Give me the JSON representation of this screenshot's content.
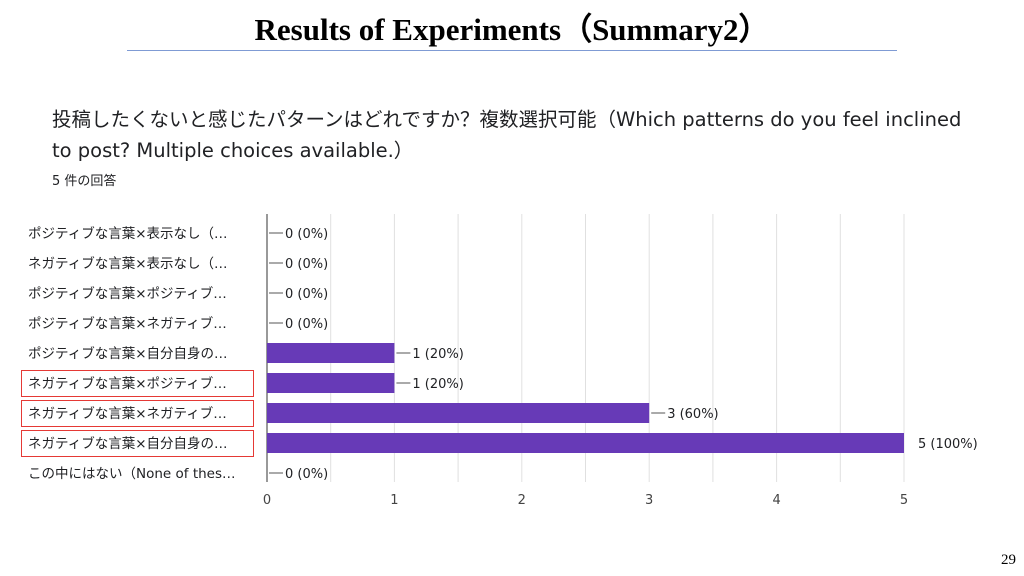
{
  "slide": {
    "title": "Results of Experiments（Summary2）",
    "page_number": "29"
  },
  "question": {
    "text": "投稿したくないと感じたパターンはどれですか？複数選択可能（Which patterns do you feel inclined to post? Multiple choices available.）",
    "response_count": "5 件の回答"
  },
  "colors": {
    "bar": "#673ab7",
    "highlight": "#e53935",
    "rule": "#7f9bd4"
  },
  "chart_data": {
    "type": "bar",
    "orientation": "horizontal",
    "categories": [
      "ポジティブな言葉×表示なし（…",
      "ネガティブな言葉×表示なし（…",
      "ポジティブな言葉×ポジティブ…",
      "ポジティブな言葉×ネガティブ…",
      "ポジティブな言葉×自分自身の…",
      "ネガティブな言葉×ポジティブ…",
      "ネガティブな言葉×ネガティブ…",
      "ネガティブな言葉×自分自身の…",
      "この中にはない（None of thes…"
    ],
    "values": [
      0,
      0,
      0,
      0,
      1,
      1,
      3,
      5,
      0
    ],
    "value_labels": [
      "0 (0%)",
      "0 (0%)",
      "0 (0%)",
      "0 (0%)",
      "1 (20%)",
      "1 (20%)",
      "3 (60%)",
      "5 (100%)",
      "0 (0%)"
    ],
    "x_ticks": [
      "0",
      "1",
      "2",
      "3",
      "4",
      "5"
    ],
    "xlim": [
      0,
      5
    ],
    "grid": "vertical",
    "highlighted_categories": [
      5,
      6,
      7
    ]
  }
}
